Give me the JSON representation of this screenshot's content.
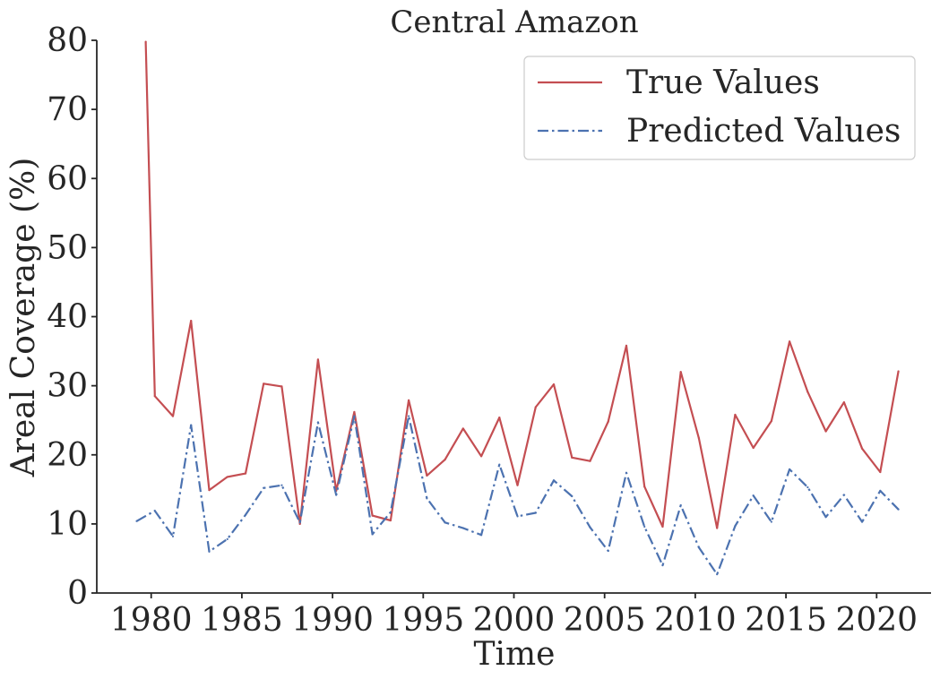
{
  "chart_data": {
    "type": "line",
    "title": "Central Amazon",
    "xlabel": "Time",
    "ylabel": "Areal Coverage (%)",
    "xlim": [
      1977,
      2023
    ],
    "ylim": [
      0,
      80
    ],
    "xticks": [
      1980,
      1985,
      1990,
      1995,
      2000,
      2005,
      2010,
      2015,
      2020
    ],
    "yticks": [
      0,
      10,
      20,
      30,
      40,
      50,
      60,
      70,
      80
    ],
    "legend_position": "top-right",
    "grid": false,
    "series": [
      {
        "name": "True Values",
        "color": "#c44e52",
        "style": "solid",
        "x": [
          1979.7,
          1980.2,
          1981.2,
          1982.2,
          1983.2,
          1984.2,
          1985.2,
          1986.2,
          1987.2,
          1988.2,
          1989.2,
          1990.2,
          1991.2,
          1992.2,
          1993.2,
          1994.2,
          1995.2,
          1996.2,
          1997.2,
          1998.2,
          1999.2,
          2000.2,
          2001.2,
          2002.2,
          2003.2,
          2004.2,
          2005.2,
          2006.2,
          2007.2,
          2008.2,
          2009.2,
          2010.2,
          2011.2,
          2012.2,
          2013.2,
          2014.2,
          2015.2,
          2016.2,
          2017.2,
          2018.2,
          2019.2,
          2020.2,
          2021.2
        ],
        "y": [
          79.8,
          28.5,
          25.6,
          39.4,
          14.9,
          16.8,
          17.3,
          30.3,
          29.9,
          10.0,
          33.8,
          14.8,
          26.2,
          11.2,
          10.5,
          27.9,
          17.0,
          19.3,
          23.8,
          19.8,
          25.4,
          15.6,
          26.9,
          30.2,
          19.6,
          19.1,
          24.8,
          35.8,
          15.4,
          9.6,
          32.0,
          22.4,
          9.4,
          25.8,
          21.0,
          24.9,
          36.4,
          29.1,
          23.4,
          27.6,
          20.9,
          17.5,
          32.1
        ]
      },
      {
        "name": "Predicted Values",
        "color": "#4c72b0",
        "style": "dashdot",
        "x": [
          1979.2,
          1980.2,
          1981.2,
          1982.2,
          1983.2,
          1984.2,
          1985.2,
          1986.2,
          1987.2,
          1988.2,
          1989.2,
          1990.2,
          1991.2,
          1992.2,
          1993.2,
          1994.2,
          1995.2,
          1996.2,
          1997.2,
          1998.2,
          1999.2,
          2000.2,
          2001.2,
          2002.2,
          2003.2,
          2004.2,
          2005.2,
          2006.2,
          2007.2,
          2008.2,
          2009.2,
          2010.2,
          2011.2,
          2012.2,
          2013.2,
          2014.2,
          2015.2,
          2016.2,
          2017.2,
          2018.2,
          2019.2,
          2020.2,
          2021.2
        ],
        "y": [
          10.4,
          11.9,
          8.2,
          24.3,
          6.0,
          7.8,
          11.3,
          15.2,
          15.6,
          10.2,
          24.7,
          14.2,
          25.6,
          8.5,
          11.7,
          25.6,
          13.7,
          10.2,
          9.4,
          8.4,
          18.6,
          11.1,
          11.6,
          16.3,
          14.0,
          9.5,
          6.1,
          17.4,
          9.6,
          4.0,
          12.7,
          6.6,
          2.7,
          9.7,
          14.1,
          10.3,
          17.9,
          15.3,
          11.0,
          14.2,
          10.3,
          14.8,
          12.1
        ]
      }
    ]
  }
}
